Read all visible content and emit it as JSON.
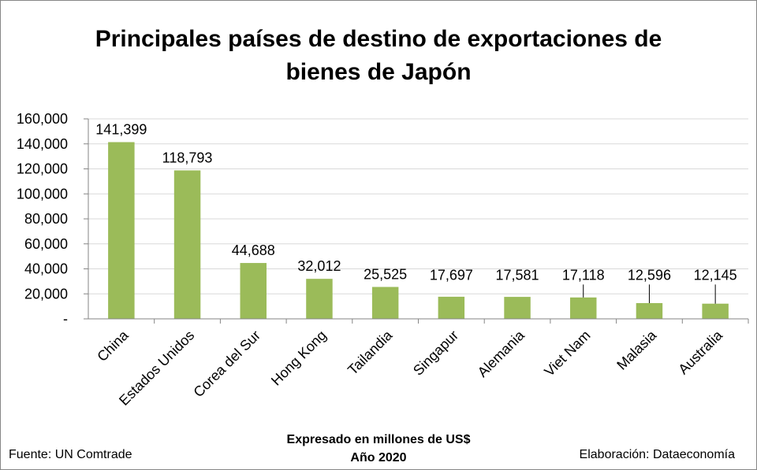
{
  "chart_data": {
    "type": "bar",
    "title_lines": [
      "Principales países de destino de exportaciones de",
      "bienes de Japón"
    ],
    "categories": [
      "China",
      "Estados Unidos",
      "Corea del Sur",
      "Hong Kong",
      "Tailandia",
      "Singapur",
      "Alemania",
      "Viet Nam",
      "Malasia",
      "Australia"
    ],
    "values": [
      141399,
      118793,
      44688,
      32012,
      25525,
      17697,
      17581,
      17118,
      12596,
      12145
    ],
    "value_labels": [
      "141,399",
      "118,793",
      "44,688",
      "32,012",
      "25,525",
      "17,697",
      "17,581",
      "17,118",
      "12,596",
      "12,145"
    ],
    "ylim": [
      0,
      160000
    ],
    "y_ticks": [
      {
        "value": 0,
        "label": "-"
      },
      {
        "value": 20000,
        "label": "20,000"
      },
      {
        "value": 40000,
        "label": "40,000"
      },
      {
        "value": 60000,
        "label": "60,000"
      },
      {
        "value": 80000,
        "label": "80,000"
      },
      {
        "value": 100000,
        "label": "100,000"
      },
      {
        "value": 120000,
        "label": "120,000"
      },
      {
        "value": 140000,
        "label": "140,000"
      },
      {
        "value": 160000,
        "label": "160,000"
      }
    ],
    "grid": true,
    "bar_color": "#9BBB59",
    "grid_color": "#D9D9D9",
    "legend": "none"
  },
  "notes": {
    "unit": "Expresado en millones de US$",
    "year": "Año 2020",
    "source": "Fuente: UN Comtrade",
    "credit": "Elaboración: Dataeconomía"
  }
}
